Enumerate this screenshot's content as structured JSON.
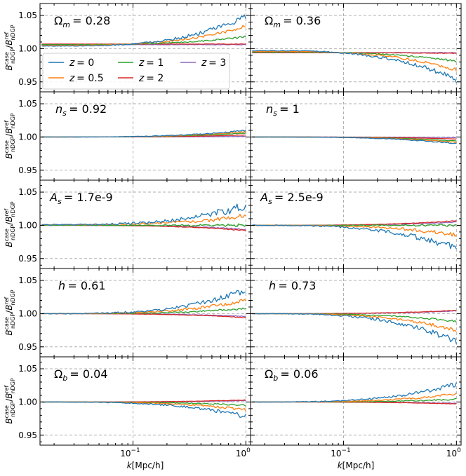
{
  "chart_data": {
    "type": "line",
    "layout": "5x2 grid of panels",
    "ylabel": "B^case_nDGP / B^ref_nDGP",
    "xlabel": "k[Mpc/h]",
    "xscale": "log",
    "xlim": [
      0.015,
      1.1
    ],
    "ylim": [
      0.935,
      1.068
    ],
    "yticks": [
      "0.95",
      "1.00",
      "1.05"
    ],
    "xticks": [
      "10",
      "10"
    ],
    "xtick_exponents": [
      "−1",
      "0"
    ],
    "colors": {
      "z0": "#1f77b4",
      "z0.5": "#ff7f0e",
      "z1": "#2ca02c",
      "z2": "#d62728",
      "z3": "#9467bd"
    },
    "legend": [
      {
        "key": "z0",
        "label_var": "z",
        "label_value": "= 0"
      },
      {
        "key": "z0.5",
        "label_var": "z",
        "label_value": "= 0.5"
      },
      {
        "key": "z1",
        "label_var": "z",
        "label_value": "= 1"
      },
      {
        "key": "z2",
        "label_var": "z",
        "label_value": "= 2"
      },
      {
        "key": "z3",
        "label_var": "z",
        "label_value": "= 3"
      }
    ],
    "panels": [
      {
        "param": "Ωm",
        "sym": "Ω",
        "sub": "m",
        "value": "= 0.28",
        "final": {
          "z0": 1.048,
          "z0.5": 1.034,
          "z1": 1.018,
          "z2": 1.007,
          "z3": 1.006
        },
        "start": {
          "z0": 1.004,
          "z0.5": 1.005,
          "z1": 1.006,
          "z2": 1.007,
          "z3": 1.006
        },
        "noise": 0.0045
      },
      {
        "param": "Ωm",
        "sym": "Ω",
        "sub": "m",
        "value": "= 0.36",
        "final": {
          "z0": 0.953,
          "z0.5": 0.968,
          "z1": 0.981,
          "z2": 0.993,
          "z3": 0.994
        },
        "start": {
          "z0": 0.997,
          "z0.5": 0.996,
          "z1": 0.995,
          "z2": 0.994,
          "z3": 0.994
        },
        "noise": 0.0045
      },
      {
        "param": "ns",
        "sym": "n",
        "sub": "s",
        "value": "= 0.92",
        "final": {
          "z0": 1.01,
          "z0.5": 1.008,
          "z1": 1.006,
          "z2": 1.003,
          "z3": 1.001
        },
        "start": {
          "z0": 1.0,
          "z0.5": 1.0,
          "z1": 1.0,
          "z2": 1.0,
          "z3": 1.0
        },
        "noise": 0.0012
      },
      {
        "param": "ns",
        "sym": "n",
        "sub": "s",
        "value": "= 1",
        "final": {
          "z0": 0.99,
          "z0.5": 0.992,
          "z1": 0.994,
          "z2": 0.997,
          "z3": 0.999
        },
        "start": {
          "z0": 1.0,
          "z0.5": 1.0,
          "z1": 1.0,
          "z2": 1.0,
          "z3": 1.0
        },
        "noise": 0.0012
      },
      {
        "param": "As",
        "sym": "A",
        "sub": "s",
        "value": "= 1.7e-9",
        "final": {
          "z0": 1.03,
          "z0.5": 1.014,
          "z1": 1.0,
          "z2": 0.992,
          "z3": 0.994
        },
        "start": {
          "z0": 1.001,
          "z0.5": 1.001,
          "z1": 1.0,
          "z2": 1.0,
          "z3": 1.0
        },
        "noise": 0.007
      },
      {
        "param": "As",
        "sym": "A",
        "sub": "s",
        "value": "= 2.5e-9",
        "final": {
          "z0": 0.965,
          "z0.5": 0.985,
          "z1": 1.0,
          "z2": 1.007,
          "z3": 1.005
        },
        "start": {
          "z0": 1.0,
          "z0.5": 1.0,
          "z1": 1.0,
          "z2": 1.0,
          "z3": 1.0
        },
        "noise": 0.006
      },
      {
        "param": "h",
        "sym": "h",
        "sub": "",
        "value": "= 0.61",
        "final": {
          "z0": 1.035,
          "z0.5": 1.02,
          "z1": 1.008,
          "z2": 0.994,
          "z3": 0.996
        },
        "start": {
          "z0": 1.0,
          "z0.5": 1.0,
          "z1": 1.0,
          "z2": 1.0,
          "z3": 1.0
        },
        "noise": 0.0055
      },
      {
        "param": "h",
        "sym": "h",
        "sub": "",
        "value": "= 0.73",
        "final": {
          "z0": 0.958,
          "z0.5": 0.975,
          "z1": 0.988,
          "z2": 1.005,
          "z3": 1.004
        },
        "start": {
          "z0": 1.0,
          "z0.5": 1.0,
          "z1": 1.0,
          "z2": 1.0,
          "z3": 1.0
        },
        "noise": 0.005
      },
      {
        "param": "Ωb",
        "sym": "Ω",
        "sub": "b",
        "value": "= 0.04",
        "final": {
          "z0": 0.978,
          "z0.5": 0.988,
          "z1": 0.995,
          "z2": 1.003,
          "z3": 1.002
        },
        "start": {
          "z0": 1.0,
          "z0.5": 1.0,
          "z1": 1.0,
          "z2": 1.0,
          "z3": 1.0
        },
        "noise": 0.0035
      },
      {
        "param": "Ωb",
        "sym": "Ω",
        "sub": "b",
        "value": "= 0.06",
        "final": {
          "z0": 1.027,
          "z0.5": 1.012,
          "z1": 1.004,
          "z2": 0.997,
          "z3": 0.998
        },
        "start": {
          "z0": 1.0,
          "z0.5": 1.0,
          "z1": 1.0,
          "z2": 1.0,
          "z3": 1.0
        },
        "noise": 0.0035
      }
    ]
  }
}
